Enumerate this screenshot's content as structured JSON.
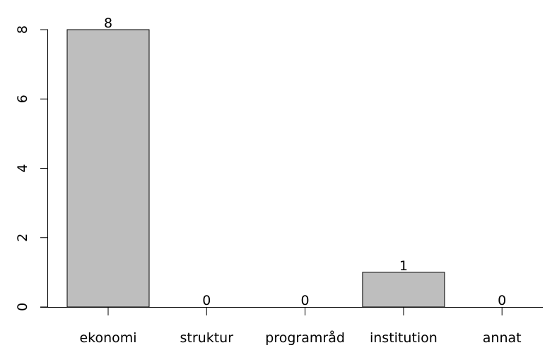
{
  "chart_data": {
    "type": "bar",
    "categories": [
      "ekonomi",
      "struktur",
      "programråd",
      "institution",
      "annat"
    ],
    "values": [
      8,
      0,
      0,
      1,
      0
    ],
    "color": "#bebebe",
    "ylim": [
      0,
      8
    ],
    "yticks": [
      0,
      2,
      4,
      6,
      8
    ],
    "grid": false
  }
}
